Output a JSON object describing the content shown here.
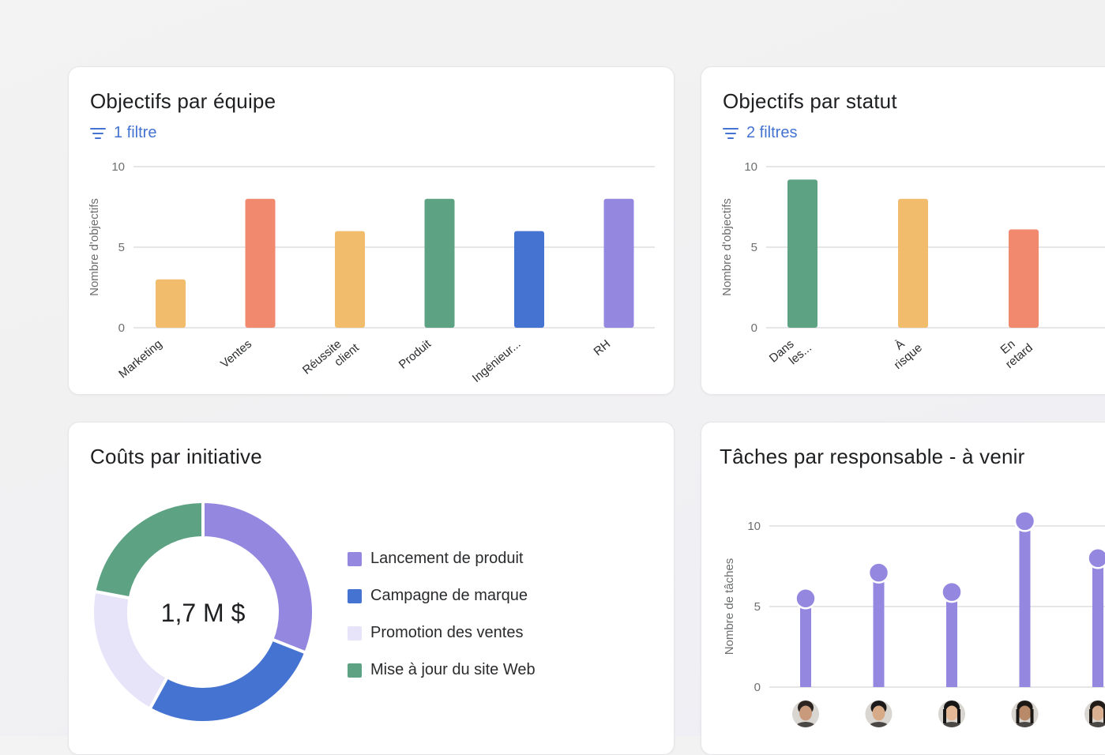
{
  "cards": {
    "team": {
      "title": "Objectifs par équipe",
      "filter_label": "1 filtre",
      "ylabel": "Nombre d'objectifs"
    },
    "status": {
      "title": "Objectifs par statut",
      "filter_label": "2 filtres",
      "ylabel": "Nombre d'objectifs"
    },
    "costs": {
      "title": "Coûts par initiative",
      "center_value": "1,7 M $"
    },
    "tasks": {
      "title": "Tâches par responsable - à venir",
      "ylabel": "Nombre de tâches"
    }
  },
  "colors": {
    "yellow": "#f1bd6c",
    "coral": "#f0896e",
    "green": "#5da283",
    "blue": "#4573d2",
    "purple": "#9387e0",
    "lavender": "#e7e4f9",
    "link": "#4573d2"
  },
  "chart_data": [
    {
      "id": "team",
      "type": "bar",
      "categories": [
        "Marketing",
        "Ventes",
        "Réussite client",
        "Produit",
        "Ingénieur...",
        "RH"
      ],
      "values": [
        3,
        8,
        6,
        8,
        6,
        8
      ],
      "bar_colors": [
        "#f1bd6c",
        "#f0896e",
        "#f1bd6c",
        "#5da283",
        "#4573d2",
        "#9387e0"
      ],
      "ylabel": "Nombre d'objectifs",
      "ylim": [
        0,
        10
      ],
      "yticks": [
        0,
        5,
        10
      ],
      "grid": true
    },
    {
      "id": "status",
      "type": "bar",
      "categories": [
        "Dans les...",
        "À risque",
        "En retard"
      ],
      "values": [
        9.2,
        8,
        6.1
      ],
      "bar_colors": [
        "#5da283",
        "#f1bd6c",
        "#f0896e"
      ],
      "ylabel": "Nombre d'objectifs",
      "ylim": [
        0,
        10
      ],
      "yticks": [
        0,
        5,
        10
      ],
      "grid": true
    },
    {
      "id": "costs",
      "type": "pie",
      "labels": [
        "Lancement de produit",
        "Campagne de marque",
        "Promotion des ventes",
        "Mise à jour du site Web"
      ],
      "values": [
        0.31,
        0.27,
        0.2,
        0.22
      ],
      "colors": [
        "#9387e0",
        "#4573d2",
        "#e7e4f9",
        "#5da283"
      ],
      "center_label": "1,7 M $",
      "legend": "right"
    },
    {
      "id": "tasks",
      "type": "bar",
      "categories": [
        "",
        "",
        "",
        "",
        ""
      ],
      "values": [
        5.5,
        7.1,
        5.9,
        10.3,
        8
      ],
      "bar_colors": [
        "#9387e0",
        "#9387e0",
        "#9387e0",
        "#9387e0",
        "#9387e0"
      ],
      "ylabel": "Nombre de tâches",
      "ylim": [
        0,
        10
      ],
      "yticks": [
        0,
        5,
        10
      ],
      "grid": true
    }
  ],
  "avatars": [
    {
      "icon": "avatar-man-smiling",
      "skin": "#c99a7c",
      "hair": "#2b2420"
    },
    {
      "icon": "avatar-man-glasses",
      "skin": "#d8ab88",
      "hair": "#1c1a1a"
    },
    {
      "icon": "avatar-woman-long-hair",
      "skin": "#e3b896",
      "hair": "#161616"
    },
    {
      "icon": "avatar-woman-dark-hair",
      "skin": "#b88a6a",
      "hair": "#1a1715"
    },
    {
      "icon": "avatar-woman-partial",
      "skin": "#d9b091",
      "hair": "#221c19"
    }
  ]
}
